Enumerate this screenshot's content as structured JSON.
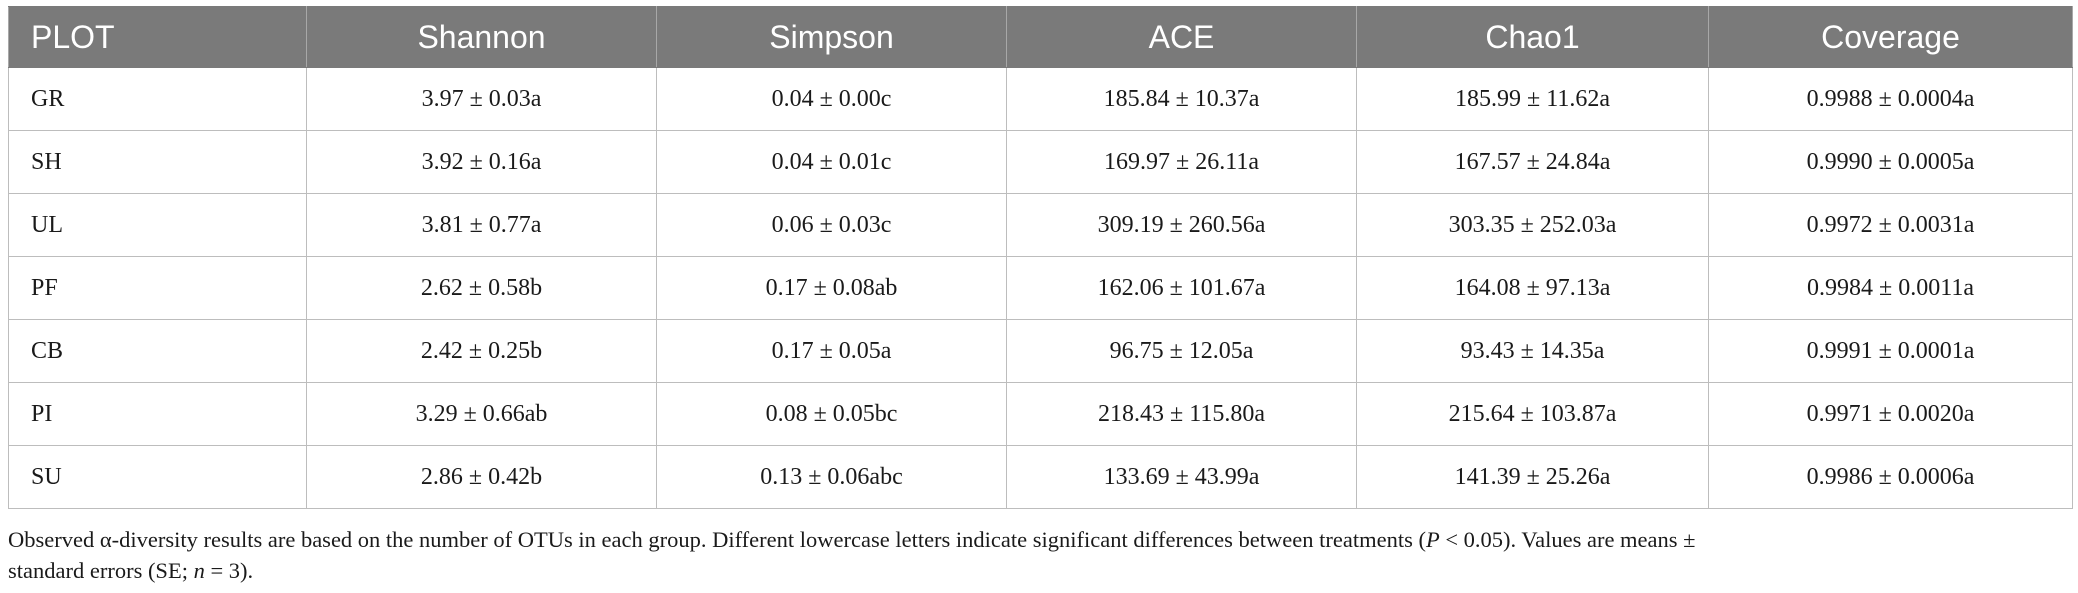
{
  "table": {
    "headers": [
      "PLOT",
      "Shannon",
      "Simpson",
      "ACE",
      "Chao1",
      "Coverage"
    ],
    "rows": [
      [
        "GR",
        "3.97 ± 0.03a",
        "0.04 ± 0.00c",
        "185.84 ± 10.37a",
        "185.99 ± 11.62a",
        "0.9988 ± 0.0004a"
      ],
      [
        "SH",
        "3.92 ± 0.16a",
        "0.04 ± 0.01c",
        "169.97 ± 26.11a",
        "167.57 ± 24.84a",
        "0.9990 ± 0.0005a"
      ],
      [
        "UL",
        "3.81 ± 0.77a",
        "0.06 ± 0.03c",
        "309.19 ± 260.56a",
        "303.35 ± 252.03a",
        "0.9972 ± 0.0031a"
      ],
      [
        "PF",
        "2.62 ± 0.58b",
        "0.17 ± 0.08ab",
        "162.06 ± 101.67a",
        "164.08 ± 97.13a",
        "0.9984 ± 0.0011a"
      ],
      [
        "CB",
        "2.42 ± 0.25b",
        "0.17 ± 0.05a",
        "96.75 ± 12.05a",
        "93.43 ± 14.35a",
        "0.9991 ± 0.0001a"
      ],
      [
        "PI",
        "3.29 ± 0.66ab",
        "0.08 ± 0.05bc",
        "218.43 ± 115.80a",
        "215.64 ± 103.87a",
        "0.9971 ± 0.0020a"
      ],
      [
        "SU",
        "2.86 ± 0.42b",
        "0.13 ± 0.06abc",
        "133.69 ± 43.99a",
        "141.39 ± 25.26a",
        "0.9986 ± 0.0006a"
      ]
    ]
  },
  "footnote": {
    "line1": "Observed α-diversity results are based on the number of OTUs in each group. Different lowercase letters indicate significant differences between treatments (",
    "p_symbol": "P",
    "line1_end": " < 0.05). Values are means ±",
    "line2": "standard errors (SE; ",
    "n_symbol": "n",
    "line2_end": " = 3)."
  }
}
